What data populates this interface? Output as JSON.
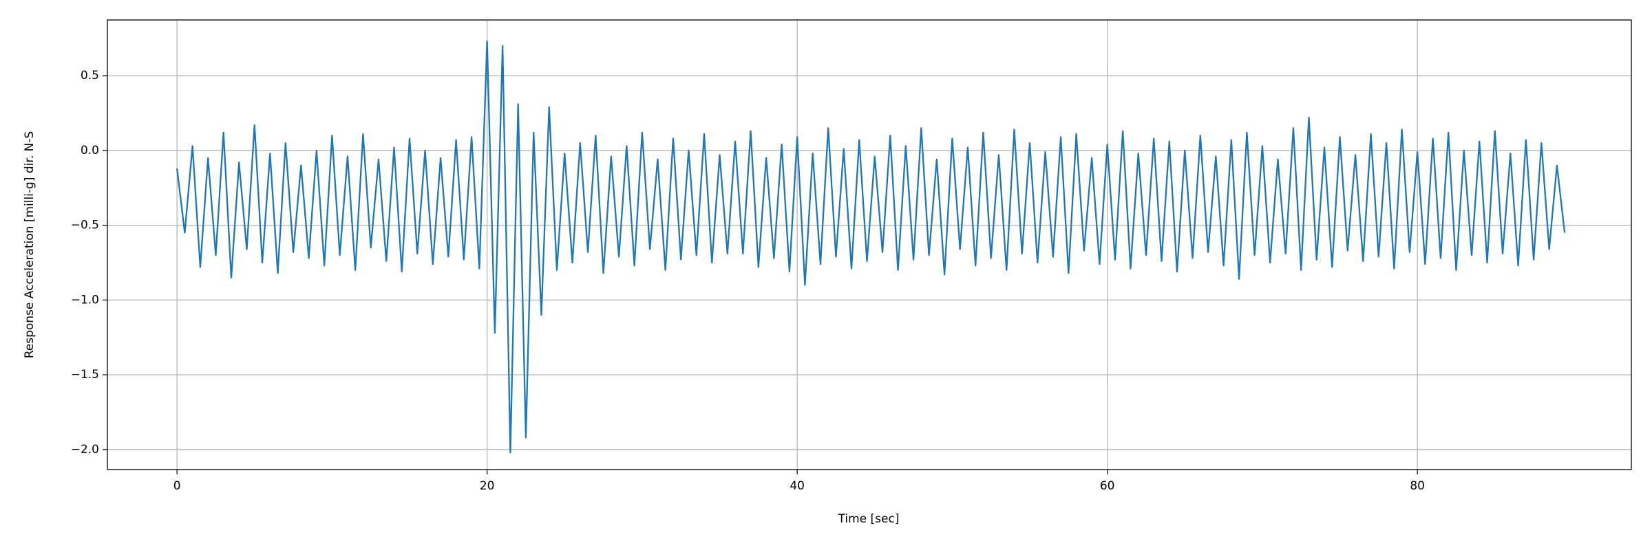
{
  "chart_data": {
    "type": "line",
    "xlabel": "Time [sec]",
    "ylabel": "Response Acceleration [milli-g] dir. N-S",
    "x": [
      0,
      0.5,
      1,
      1.5,
      2,
      2.5,
      3,
      3.5,
      4,
      4.5,
      5,
      5.5,
      6,
      6.5,
      7,
      7.5,
      8,
      8.5,
      9,
      9.5,
      10,
      10.5,
      11,
      11.5,
      12,
      12.5,
      13,
      13.5,
      14,
      14.5,
      15,
      15.5,
      16,
      16.5,
      17,
      17.5,
      18,
      18.5,
      19,
      19.5,
      20,
      20.5,
      21,
      21.5,
      22,
      22.5,
      23,
      23.5,
      24,
      24.5,
      25,
      25.5,
      26,
      26.5,
      27,
      27.5,
      28,
      28.5,
      29,
      29.5,
      30,
      30.5,
      31,
      31.5,
      32,
      32.5,
      33,
      33.5,
      34,
      34.5,
      35,
      35.5,
      36,
      36.5,
      37,
      37.5,
      38,
      38.5,
      39,
      39.5,
      40,
      40.5,
      41,
      41.5,
      42,
      42.5,
      43,
      43.5,
      44,
      44.5,
      45,
      45.5,
      46,
      46.5,
      47,
      47.5,
      48,
      48.5,
      49,
      49.5,
      50,
      50.5,
      51,
      51.5,
      52,
      52.5,
      53,
      53.5,
      54,
      54.5,
      55,
      55.5,
      56,
      56.5,
      57,
      57.5,
      58,
      58.5,
      59,
      59.5,
      60,
      60.5,
      61,
      61.5,
      62,
      62.5,
      63,
      63.5,
      64,
      64.5,
      65,
      65.5,
      66,
      66.5,
      67,
      67.5,
      68,
      68.5,
      69,
      69.5,
      70,
      70.5,
      71,
      71.5,
      72,
      72.5,
      73,
      73.5,
      74,
      74.5,
      75,
      75.5,
      76,
      76.5,
      77,
      77.5,
      78,
      78.5,
      79,
      79.5,
      80,
      80.5,
      81,
      81.5,
      82,
      82.5,
      83,
      83.5,
      84,
      84.5,
      85,
      85.5,
      86,
      86.5,
      87,
      87.5,
      88,
      88.5,
      89,
      89.5
    ],
    "series": [
      {
        "color": "#1f77b4",
        "values": [
          -0.12,
          -0.55,
          0.03,
          -0.78,
          -0.05,
          -0.7,
          0.12,
          -0.85,
          -0.08,
          -0.66,
          0.17,
          -0.75,
          -0.02,
          -0.82,
          0.05,
          -0.68,
          -0.1,
          -0.72,
          0.0,
          -0.77,
          0.1,
          -0.7,
          -0.04,
          -0.8,
          0.11,
          -0.65,
          -0.06,
          -0.74,
          0.02,
          -0.81,
          0.08,
          -0.69,
          0.0,
          -0.76,
          -0.05,
          -0.71,
          0.07,
          -0.73,
          0.09,
          -0.79,
          0.73,
          -1.22,
          0.7,
          -2.02,
          0.31,
          -1.92,
          0.12,
          -1.1,
          0.29,
          -0.8,
          -0.02,
          -0.75,
          0.05,
          -0.68,
          0.1,
          -0.82,
          -0.04,
          -0.71,
          0.03,
          -0.77,
          0.12,
          -0.66,
          -0.06,
          -0.8,
          0.08,
          -0.73,
          0.0,
          -0.7,
          0.11,
          -0.75,
          -0.03,
          -0.69,
          0.06,
          -0.69,
          0.13,
          -0.78,
          -0.05,
          -0.72,
          0.04,
          -0.81,
          0.09,
          -0.9,
          -0.02,
          -0.76,
          0.15,
          -0.71,
          0.01,
          -0.79,
          0.07,
          -0.74,
          -0.04,
          -0.68,
          0.1,
          -0.8,
          0.03,
          -0.73,
          0.15,
          -0.7,
          -0.06,
          -0.83,
          0.08,
          -0.66,
          0.02,
          -0.77,
          0.12,
          -0.72,
          -0.03,
          -0.8,
          0.14,
          -0.69,
          0.05,
          -0.75,
          -0.01,
          -0.71,
          0.09,
          -0.82,
          0.11,
          -0.67,
          -0.05,
          -0.76,
          0.04,
          -0.73,
          0.13,
          -0.79,
          -0.02,
          -0.7,
          0.08,
          -0.74,
          0.06,
          -0.81,
          0.0,
          -0.72,
          0.1,
          -0.68,
          -0.04,
          -0.77,
          0.07,
          -0.86,
          0.12,
          -0.7,
          0.03,
          -0.75,
          -0.06,
          -0.69,
          0.15,
          -0.8,
          0.22,
          -0.73,
          0.02,
          -0.78,
          0.09,
          -0.67,
          -0.03,
          -0.74,
          0.11,
          -0.71,
          0.05,
          -0.79,
          0.14,
          -0.68,
          -0.01,
          -0.76,
          0.08,
          -0.72,
          0.12,
          -0.8,
          0.0,
          -0.7,
          0.06,
          -0.75,
          0.13,
          -0.69,
          -0.02,
          -0.77,
          0.07,
          -0.73,
          0.05,
          -0.66,
          -0.1,
          -0.55
        ]
      }
    ],
    "xlim": [
      -4.49,
      93.8
    ],
    "ylim": [
      -2.134,
      0.873
    ],
    "xticks": [
      0,
      20,
      40,
      60,
      80
    ],
    "yticks": [
      {
        "value": -2.0,
        "label": "−2.0"
      },
      {
        "value": -1.5,
        "label": "−1.5"
      },
      {
        "value": -1.0,
        "label": "−1.0"
      },
      {
        "value": -0.5,
        "label": "−0.5"
      },
      {
        "value": 0,
        "label": "0.0"
      },
      0.5
    ],
    "grid": true
  }
}
